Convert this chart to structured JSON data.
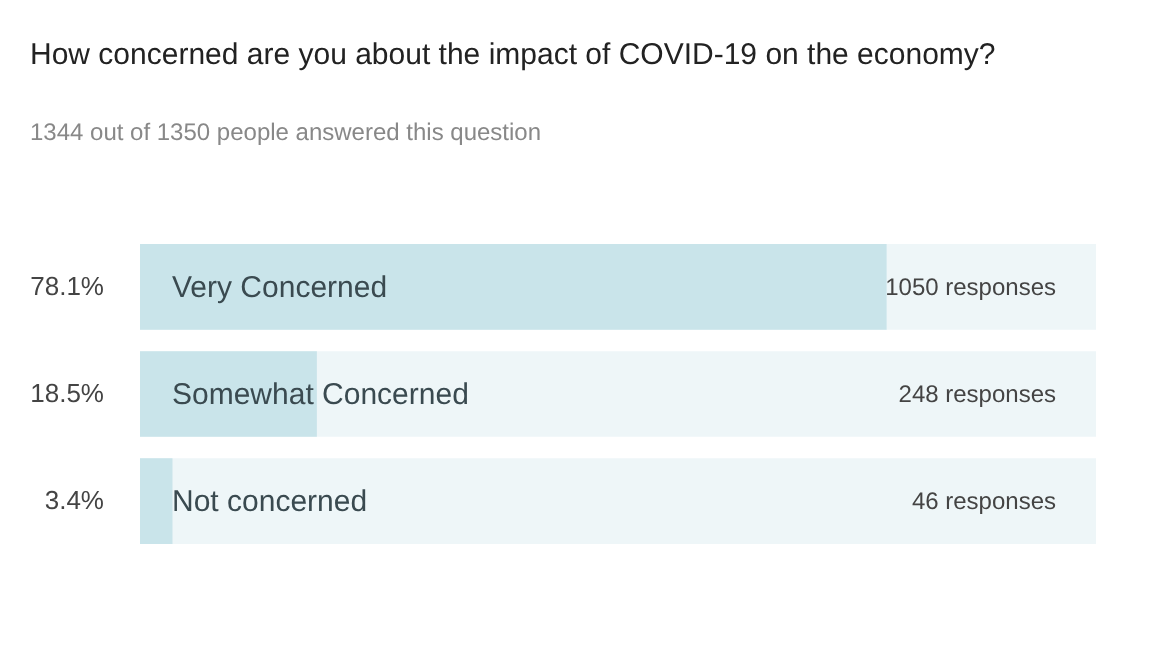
{
  "chart_data": {
    "type": "bar",
    "orientation": "horizontal",
    "title": "How concerned are you about the impact of COVID-19 on the economy?",
    "subtitle": "1344 out of 1350 people answered this question",
    "categories": [
      "Very Concerned",
      "Somewhat Concerned",
      "Not concerned"
    ],
    "values": [
      78.1,
      18.5,
      3.4
    ],
    "value_labels": [
      "78.1%",
      "18.5%",
      "3.4%"
    ],
    "color": "#c9e4ea",
    "xlim": [
      0,
      100
    ],
    "annotations": [
      "1050 responses",
      "248 responses",
      "46 responses"
    ]
  }
}
